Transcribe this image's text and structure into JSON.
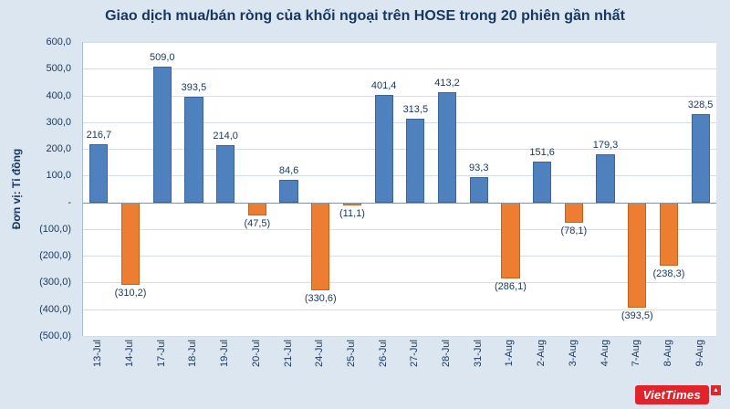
{
  "chart_data": {
    "type": "bar",
    "title": "Giao dịch mua/bán ròng của khối ngoại trên HOSE trong 20 phiên gần nhất",
    "ylabel": "Đơn vị: Tỉ đồng",
    "xlabel": "",
    "categories": [
      "13-Jul",
      "14-Jul",
      "17-Jul",
      "18-Jul",
      "19-Jul",
      "20-Jul",
      "21-Jul",
      "24-Jul",
      "25-Jul",
      "26-Jul",
      "27-Jul",
      "28-Jul",
      "31-Jul",
      "1-Aug",
      "2-Aug",
      "3-Aug",
      "4-Aug",
      "7-Aug",
      "8-Aug",
      "9-Aug"
    ],
    "values": [
      216.7,
      -310.2,
      509.0,
      393.5,
      214.0,
      -47.5,
      84.6,
      -330.6,
      -11.1,
      401.4,
      313.5,
      413.2,
      93.3,
      -286.1,
      151.6,
      -78.1,
      179.3,
      -393.5,
      -238.3,
      328.5
    ],
    "value_labels": [
      "216,7",
      "(310,2)",
      "509,0",
      "393,5",
      "214,0",
      "(47,5)",
      "84,6",
      "(330,6)",
      "(11,1)",
      "401,4",
      "313,5",
      "413,2",
      "93,3",
      "(286,1)",
      "151,6",
      "(78,1)",
      "179,3",
      "(393,5)",
      "(238,3)",
      "328,5"
    ],
    "y_ticks": [
      {
        "label": "600,0",
        "value": 600
      },
      {
        "label": "500,0",
        "value": 500
      },
      {
        "label": "400,0",
        "value": 400
      },
      {
        "label": "300,0",
        "value": 300
      },
      {
        "label": "200,0",
        "value": 200
      },
      {
        "label": "100,0",
        "value": 100
      },
      {
        "label": "-",
        "value": 0
      },
      {
        "label": "(100,0)",
        "value": -100
      },
      {
        "label": "(200,0)",
        "value": -200
      },
      {
        "label": "(300,0)",
        "value": -300
      },
      {
        "label": "(400,0)",
        "value": -400
      },
      {
        "label": "(500,0)",
        "value": -500
      }
    ],
    "ylim": [
      -500,
      600
    ],
    "grid": true,
    "legend": "none",
    "colors": {
      "positive": "#4E81BD",
      "positive_border": "#39659A",
      "negative": "#ED7D31",
      "negative_border": "#C4621C",
      "background": "#DCE6F1",
      "plot_background": "#FFFFFF",
      "text": "#17375E"
    }
  },
  "branding": {
    "logo_text": "VietTimes",
    "logo_mark": "▲",
    "brand_color": "#E0242B"
  }
}
